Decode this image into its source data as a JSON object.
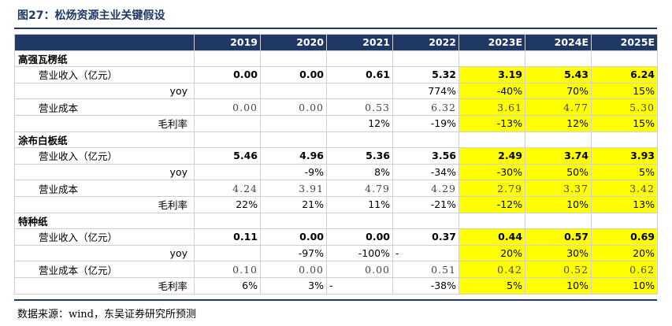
{
  "title": "图27：松炀资源主业关键假设",
  "columns": [
    "",
    "2019",
    "2020",
    "2021",
    "2022",
    "2023E",
    "2024E",
    "2025E"
  ],
  "sections": [
    {
      "name": "高强瓦楞纸",
      "rows": [
        {
          "label": "营业收入（亿元）",
          "level": 1,
          "style": "bold",
          "values": [
            "0.00",
            "0.00",
            "0.61",
            "5.32",
            "3.19",
            "5.43",
            "6.24"
          ]
        },
        {
          "label": "yoy",
          "level": 2,
          "style": "plain",
          "values": [
            "",
            "",
            "",
            "774%",
            "-40%",
            "70%",
            "15%"
          ]
        },
        {
          "label": "营业成本",
          "level": 1,
          "style": "serif",
          "values": [
            "0.00",
            "0.00",
            "0.53",
            "6.32",
            "3.61",
            "4.77",
            "5.30"
          ]
        },
        {
          "label": "毛利率",
          "level": 2,
          "style": "plain",
          "values": [
            "",
            "",
            "12%",
            "-19%",
            "-13%",
            "12%",
            "15%"
          ]
        }
      ]
    },
    {
      "name": "涂布白板纸",
      "rows": [
        {
          "label": "营业收入（亿元）",
          "level": 1,
          "style": "bold",
          "values": [
            "5.46",
            "4.96",
            "5.36",
            "3.56",
            "2.49",
            "3.74",
            "3.93"
          ]
        },
        {
          "label": "yoy",
          "level": 2,
          "style": "plain",
          "values": [
            "",
            "-9%",
            "8%",
            "-34%",
            "-30%",
            "50%",
            "5%"
          ]
        },
        {
          "label": "营业成本",
          "level": 1,
          "style": "serif",
          "values": [
            "4.24",
            "3.91",
            "4.79",
            "4.29",
            "2.79",
            "3.37",
            "3.42"
          ]
        },
        {
          "label": "毛利率",
          "level": 2,
          "style": "plain",
          "values": [
            "22%",
            "21%",
            "11%",
            "-21%",
            "-12%",
            "10%",
            "13%"
          ]
        }
      ]
    },
    {
      "name": "特种纸",
      "rows": [
        {
          "label": "营业收入（亿元）",
          "level": 1,
          "style": "bold",
          "values": [
            "0.11",
            "0.00",
            "0.00",
            "0.37",
            "0.44",
            "0.57",
            "0.69"
          ]
        },
        {
          "label": "yoy",
          "level": 2,
          "style": "plain",
          "values": [
            "",
            "-97%",
            "-100%",
            "-",
            "20%",
            "30%",
            "20%"
          ]
        },
        {
          "label": "营业成本（亿元）",
          "level": 1,
          "style": "serif",
          "values": [
            "0.10",
            "0.00",
            "0.00",
            "0.51",
            "0.42",
            "0.52",
            "0.62"
          ]
        },
        {
          "label": "毛利率",
          "level": 2,
          "style": "plain",
          "values": [
            "6%",
            "3%",
            "-",
            "-38%",
            "5%",
            "10%",
            "10%"
          ]
        }
      ]
    }
  ],
  "highlight_color": "#ffff00",
  "header_color": "#1f3864",
  "source": "数据来源：wind，东吴证券研究所预测"
}
